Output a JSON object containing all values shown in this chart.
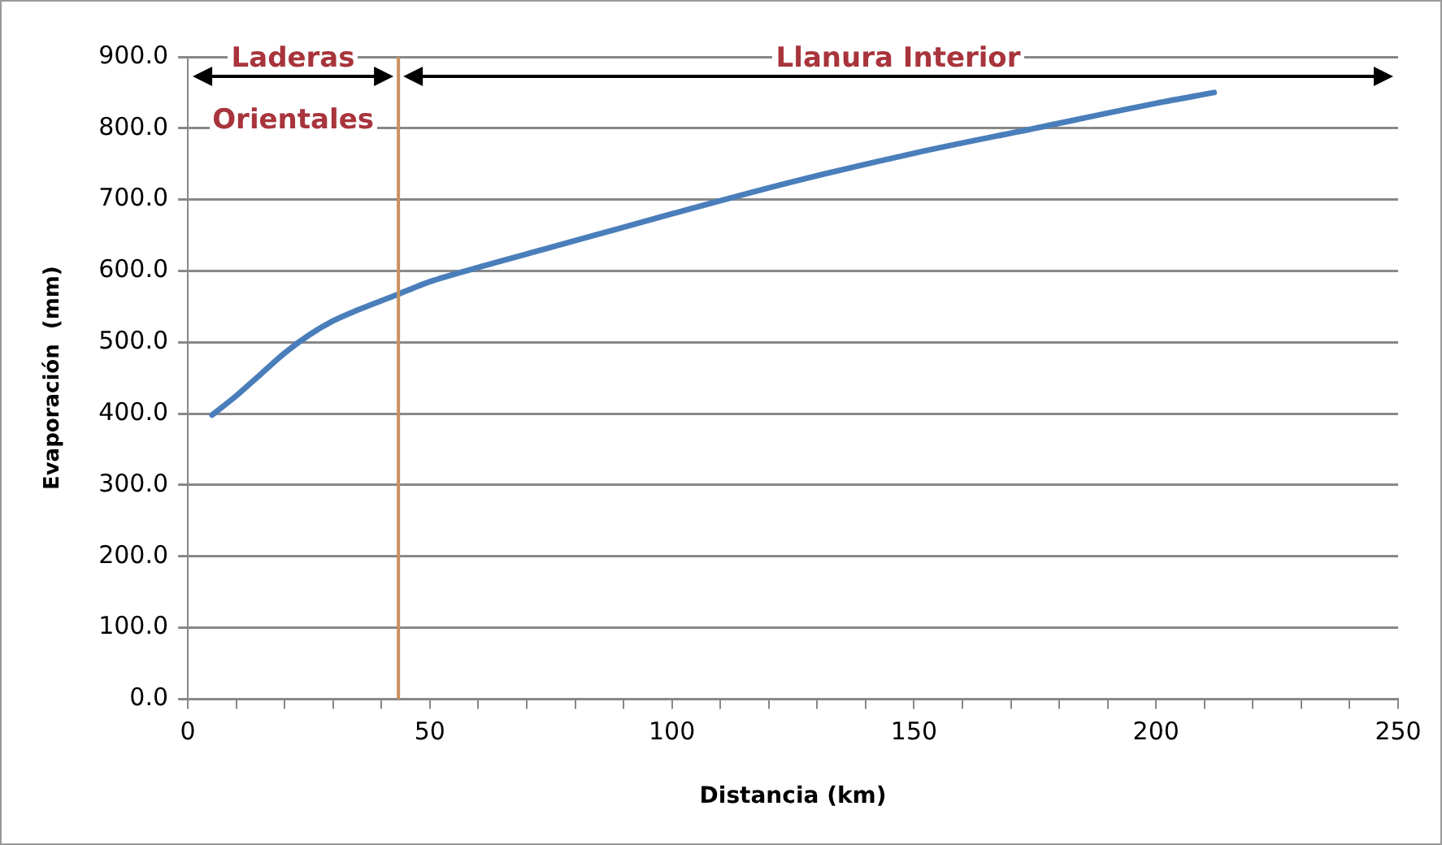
{
  "chart_data": {
    "type": "line",
    "xlabel": "Distancia (km)",
    "ylabel": "Evaporación  (mm)",
    "x": [
      5,
      10,
      15,
      20,
      25,
      30,
      35,
      43.3,
      50,
      60,
      75,
      100,
      125,
      150,
      175,
      200,
      212
    ],
    "series": [
      {
        "color": "#4a7ebb",
        "values": [
          398,
          425,
          455,
          485,
          510,
          530,
          545,
          567,
          585,
          605,
          633,
          680,
          725,
          765,
          800,
          835,
          850
        ]
      }
    ],
    "xlim": [
      0,
      250
    ],
    "xticks": [
      0,
      {
        "value": 10,
        "label": null
      },
      {
        "value": 20,
        "label": null
      },
      {
        "value": 30,
        "label": null
      },
      {
        "value": 40,
        "label": null
      },
      50,
      {
        "value": 60,
        "label": null
      },
      {
        "value": 70,
        "label": null
      },
      {
        "value": 80,
        "label": null
      },
      {
        "value": 90,
        "label": null
      },
      100,
      {
        "value": 110,
        "label": null
      },
      {
        "value": 120,
        "label": null
      },
      {
        "value": 130,
        "label": null
      },
      {
        "value": 140,
        "label": null
      },
      150,
      {
        "value": 160,
        "label": null
      },
      {
        "value": 170,
        "label": null
      },
      {
        "value": 180,
        "label": null
      },
      {
        "value": 190,
        "label": null
      },
      200,
      {
        "value": 210,
        "label": null
      },
      {
        "value": 220,
        "label": null
      },
      {
        "value": 230,
        "label": null
      },
      {
        "value": 240,
        "label": null
      },
      250
    ],
    "ylim": [
      0,
      900
    ],
    "yticks": [
      {
        "value": 0,
        "label": "0.0"
      },
      {
        "value": 100,
        "label": "100.0"
      },
      {
        "value": 200,
        "label": "200.0"
      },
      {
        "value": 300,
        "label": "300.0"
      },
      {
        "value": 400,
        "label": "400.0"
      },
      {
        "value": 500,
        "label": "500.0"
      },
      {
        "value": 600,
        "label": "600.0"
      },
      {
        "value": 700,
        "label": "700.0"
      },
      {
        "value": 800,
        "label": "800.0"
      },
      {
        "value": 900,
        "label": "900.0"
      }
    ],
    "ref_lines": [
      {
        "axis": "x",
        "value": 43.5,
        "color": "#c8915e"
      }
    ],
    "annotations": [
      "Laderas Orientales",
      "Llanura Interior"
    ],
    "grid": "y",
    "legend": false,
    "marker": "none",
    "line_style": "solid"
  }
}
